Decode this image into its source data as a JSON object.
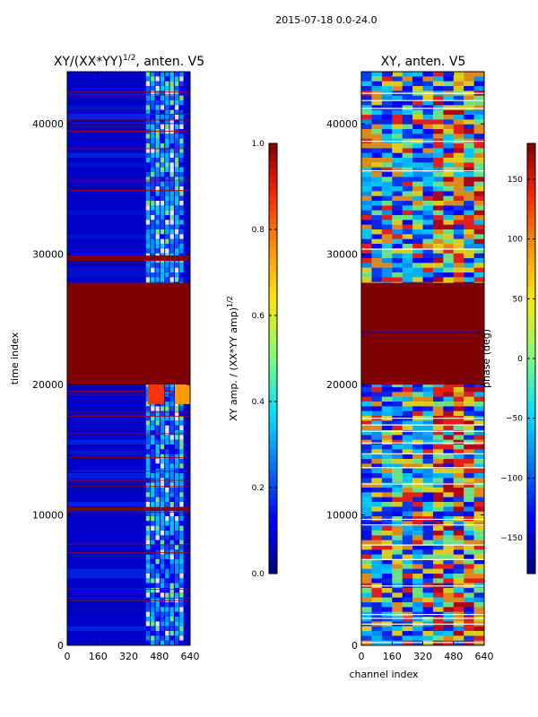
{
  "suptitle": "2015-07-18 0.0-24.0",
  "chart_data": [
    {
      "type": "heatmap",
      "title_main": "XY/(XX*YY)",
      "title_exp": "1/2",
      "title_tail": ", anten. V5",
      "xlabel": "",
      "ylabel": "time index",
      "xticks": [
        "0",
        "160",
        "320",
        "480",
        "640"
      ],
      "xtick_values": [
        0,
        160,
        320,
        480,
        640
      ],
      "yticks": [
        "0",
        "10000",
        "20000",
        "30000",
        "40000"
      ],
      "ytick_values": [
        0,
        10000,
        20000,
        30000,
        40000
      ],
      "xlim": [
        0,
        640
      ],
      "ylim": [
        0,
        44000
      ],
      "saturated_bands": [
        [
          20000,
          27800
        ],
        [
          29500,
          29900
        ],
        [
          10300,
          10600
        ]
      ],
      "active_channel_range": [
        410,
        610
      ],
      "colorbar": {
        "label_main": "XY amp. / (XX*YY amp)",
        "label_exp": "1/2",
        "range": [
          0.0,
          1.0
        ],
        "ticks": [
          "0.0",
          "0.2",
          "0.4",
          "0.6",
          "0.8",
          "1.0"
        ],
        "tick_values": [
          0.0,
          0.2,
          0.4,
          0.6,
          0.8,
          1.0
        ]
      }
    },
    {
      "type": "heatmap",
      "title": "XY, anten. V5",
      "xlabel": "channel index",
      "ylabel": "",
      "xticks": [
        "0",
        "160",
        "320",
        "480",
        "640"
      ],
      "xtick_values": [
        0,
        160,
        320,
        480,
        640
      ],
      "yticks": [
        "0",
        "10000",
        "20000",
        "30000",
        "40000"
      ],
      "ytick_values": [
        0,
        10000,
        20000,
        30000,
        40000
      ],
      "xlim": [
        0,
        640
      ],
      "ylim": [
        0,
        44000
      ],
      "saturated_bands": [
        [
          20000,
          27800
        ]
      ],
      "colorbar": {
        "label": "phase (deg)",
        "range": [
          -180,
          180
        ],
        "ticks": [
          "−150",
          "−100",
          "−50",
          "0",
          "50",
          "100",
          "150"
        ],
        "tick_values": [
          -150,
          -100,
          -50,
          0,
          50,
          100,
          150
        ]
      }
    }
  ]
}
